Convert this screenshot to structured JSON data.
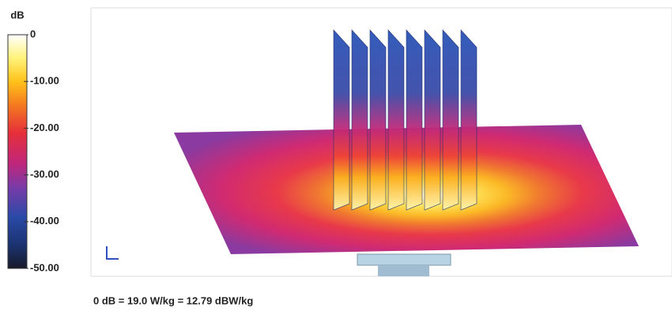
{
  "colorbar": {
    "unit": "dB",
    "lim": [
      -50,
      0
    ],
    "ticks": [
      0,
      {
        "value": -10,
        "label": "-10.00"
      },
      {
        "value": -20,
        "label": "-20.00"
      },
      {
        "value": -30,
        "label": "-30.00"
      },
      {
        "value": -40,
        "label": "-40.00"
      },
      {
        "value": -50,
        "label": "-50.00"
      }
    ]
  },
  "caption": "0 dB = 19.0 W/kg = 12.79 dBW/kg"
}
